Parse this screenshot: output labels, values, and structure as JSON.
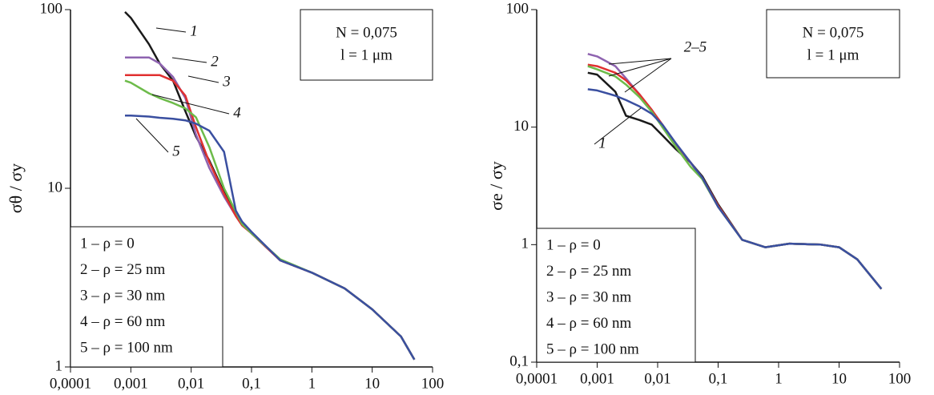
{
  "chart_data": [
    {
      "type": "line",
      "log_x": true,
      "log_y": true,
      "ylabel": "σθ / σy",
      "annotations": [
        "N = 0,075",
        "l = 1 μm"
      ],
      "curve_labels": [
        "1",
        "2",
        "3",
        "4",
        "5"
      ],
      "x": [
        0.0008,
        0.001,
        0.002,
        0.003,
        0.005,
        0.008,
        0.012,
        0.02,
        0.035,
        0.055,
        0.07,
        0.1,
        0.3,
        1,
        3.5,
        10,
        30,
        50
      ],
      "series": [
        {
          "name": "1 – ρ = 0",
          "color": "#1a1a1a",
          "values": [
            97,
            90,
            64,
            50,
            40,
            27,
            19.5,
            14.3,
            9.5,
            7.3,
            6.3,
            5.6,
            3.95,
            3.37,
            2.75,
            2.1,
            1.48,
            1.1
          ]
        },
        {
          "name": "2 – ρ = 25 nm",
          "color": "#8e63b0",
          "values": [
            54,
            54,
            54,
            50,
            42,
            32,
            20,
            13,
            9,
            7,
            6.2,
            5.6,
            3.95,
            3.37,
            2.75,
            2.1,
            1.48,
            1.1
          ]
        },
        {
          "name": "3 – ρ = 30 nm",
          "color": "#e03030",
          "values": [
            43,
            43,
            43,
            43,
            40,
            33,
            22,
            14,
            9.3,
            7,
            6.2,
            5.6,
            3.95,
            3.37,
            2.75,
            2.1,
            1.48,
            1.1
          ]
        },
        {
          "name": "4 – ρ = 60 nm",
          "color": "#6dbb4a",
          "values": [
            40,
            39,
            34,
            32,
            30,
            28,
            25,
            17,
            10,
            7.4,
            6.3,
            5.6,
            4,
            3.37,
            2.75,
            2.1,
            1.48,
            1.1
          ]
        },
        {
          "name": "5 – ρ = 100 nm",
          "color": "#3a4fa0",
          "values": [
            25.5,
            25.5,
            25.2,
            24.8,
            24.5,
            24,
            23,
            21,
            16,
            7.5,
            6.5,
            5.7,
            3.95,
            3.37,
            2.75,
            2.1,
            1.48,
            1.1
          ]
        }
      ],
      "xlim": [
        0.0001,
        100
      ],
      "ylim": [
        1,
        100
      ],
      "xticks": [
        {
          "value": 0.0001,
          "label": "0,0001"
        },
        {
          "value": 0.001,
          "label": "0,001"
        },
        {
          "value": 0.01,
          "label": "0,01"
        },
        {
          "value": 0.1,
          "label": "0,1"
        },
        1,
        10,
        100
      ],
      "yticks": [
        1,
        10,
        100
      ]
    },
    {
      "type": "line",
      "log_x": true,
      "log_y": true,
      "ylabel": "σe / σy",
      "annotations": [
        "N = 0,075",
        "l = 1 μm"
      ],
      "curve_labels": [
        "2–5",
        "1"
      ],
      "x": [
        0.0007,
        0.001,
        0.002,
        0.003,
        0.005,
        0.008,
        0.012,
        0.02,
        0.035,
        0.055,
        0.1,
        0.25,
        0.6,
        1.5,
        5,
        10,
        20,
        50
      ],
      "series": [
        {
          "name": "1 – ρ = 0",
          "color": "#1a1a1a",
          "values": [
            29,
            28,
            20,
            12.5,
            11.5,
            10.5,
            8.5,
            6.5,
            5,
            3.8,
            2.2,
            1.1,
            0.95,
            1.02,
            1.0,
            0.95,
            0.75,
            0.42
          ]
        },
        {
          "name": "2 – ρ = 25 nm",
          "color": "#8e63b0",
          "values": [
            42,
            40,
            33,
            26,
            19,
            14,
            10,
            7,
            5,
            3.6,
            2.1,
            1.1,
            0.95,
            1.02,
            1.0,
            0.95,
            0.75,
            0.42
          ]
        },
        {
          "name": "3 – ρ = 30 nm",
          "color": "#e03030",
          "values": [
            34,
            33,
            29,
            25,
            19,
            14,
            10.5,
            7.2,
            5,
            3.7,
            2.15,
            1.1,
            0.95,
            1.02,
            1.0,
            0.95,
            0.75,
            0.42
          ]
        },
        {
          "name": "4 – ρ = 60 nm",
          "color": "#6dbb4a",
          "values": [
            33,
            31,
            27,
            23,
            18,
            13.5,
            10,
            6.8,
            4.6,
            3.6,
            2.1,
            1.1,
            0.95,
            1.02,
            1.0,
            0.95,
            0.75,
            0.42
          ]
        },
        {
          "name": "5 – ρ = 100 nm",
          "color": "#3a4fa0",
          "values": [
            21,
            20.5,
            18.5,
            17,
            15,
            13,
            10.5,
            7.3,
            5,
            3.7,
            2.1,
            1.1,
            0.95,
            1.02,
            1.0,
            0.95,
            0.75,
            0.42
          ]
        }
      ],
      "xlim": [
        0.0001,
        100
      ],
      "ylim": [
        0.1,
        100
      ],
      "xticks": [
        {
          "value": 0.0001,
          "label": "0,0001"
        },
        {
          "value": 0.001,
          "label": "0,001"
        },
        {
          "value": 0.01,
          "label": "0,01"
        },
        {
          "value": 0.1,
          "label": "0,1"
        },
        1,
        10,
        100
      ],
      "yticks": [
        {
          "value": 0.1,
          "label": "0,1"
        },
        1,
        10,
        100
      ]
    }
  ]
}
